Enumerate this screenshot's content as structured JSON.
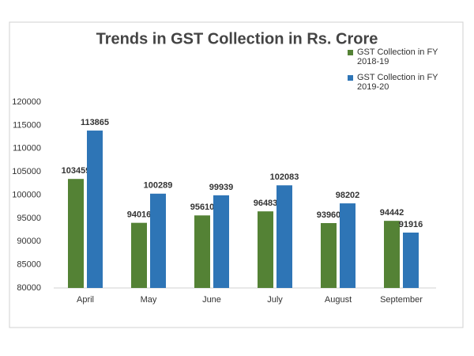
{
  "chart_data": {
    "type": "bar",
    "title": "Trends in GST Collection in Rs. Crore",
    "categories": [
      "April",
      "May",
      "June",
      "July",
      "August",
      "September"
    ],
    "series": [
      {
        "name": "GST Collection in FY 2018-19",
        "color": "#548235",
        "values": [
          103459,
          94016,
          95610,
          96483,
          93960,
          94442
        ]
      },
      {
        "name": "GST Collection in FY 2019-20",
        "color": "#2e75b6",
        "values": [
          113865,
          100289,
          99939,
          102083,
          98202,
          91916
        ]
      }
    ],
    "ylim": [
      80000,
      120000
    ],
    "yticks": [
      80000,
      85000,
      90000,
      95000,
      100000,
      105000,
      110000,
      115000,
      120000
    ],
    "grid": false,
    "legend": "top-right"
  }
}
